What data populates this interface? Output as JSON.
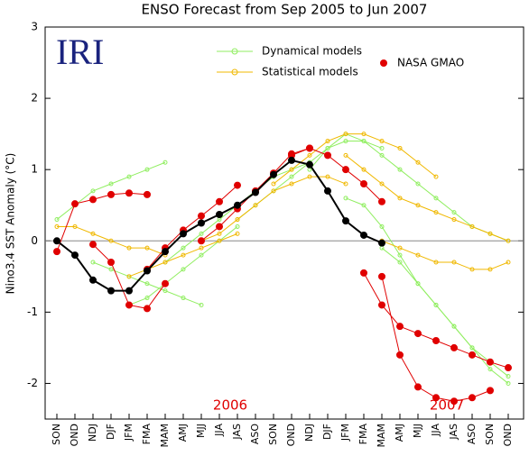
{
  "chart_data": {
    "type": "line",
    "title": "ENSO Forecast from Sep 2005 to Jun 2007",
    "brand": "IRI",
    "ylabel": "Nino3.4 SST Anomaly (°C)",
    "year_labels": [
      "2006",
      "2007"
    ],
    "categories": [
      "SON",
      "OND",
      "NDJ",
      "DJF",
      "JFM",
      "FMA",
      "MAM",
      "AMJ",
      "MJJ",
      "JJA",
      "JAS",
      "ASO",
      "SON",
      "OND",
      "NDJ",
      "DJF",
      "JFM",
      "FMA",
      "MAM",
      "AMJ",
      "MJJ",
      "JJA",
      "JAS",
      "ASO",
      "SON",
      "OND"
    ],
    "ylim": [
      -2.5,
      3
    ],
    "yticks": [
      -2,
      -1,
      0,
      1,
      2,
      3
    ],
    "observed": {
      "color": "#000000",
      "values": [
        0,
        -0.2,
        -0.55,
        -0.7,
        -0.7,
        -0.42,
        -0.15,
        0.1,
        0.25,
        0.37,
        0.5,
        0.68,
        0.93,
        1.13,
        1.07,
        0.7,
        0.28,
        0.08,
        -0.03,
        null,
        null,
        null,
        null,
        null,
        null,
        null
      ]
    },
    "series": [
      {
        "name": "Dynamical models",
        "color": "#90ee60",
        "lines": [
          [
            0.3,
            0.5,
            0.7,
            0.8,
            0.9,
            1.0,
            1.1,
            null,
            null,
            null,
            null,
            null,
            null,
            null,
            null,
            null,
            null,
            null,
            null,
            null,
            null,
            null,
            null,
            null,
            null,
            null
          ],
          [
            null,
            null,
            -0.3,
            -0.4,
            -0.5,
            -0.6,
            -0.7,
            -0.8,
            -0.9,
            null,
            null,
            null,
            null,
            null,
            null,
            null,
            null,
            null,
            null,
            null,
            null,
            null,
            null,
            null,
            null,
            null
          ],
          [
            null,
            null,
            null,
            null,
            -0.9,
            -0.8,
            -0.6,
            -0.4,
            -0.2,
            0.0,
            0.2,
            null,
            null,
            null,
            null,
            null,
            null,
            null,
            null,
            null,
            null,
            null,
            null,
            null,
            null,
            null
          ],
          [
            null,
            null,
            null,
            null,
            null,
            null,
            -0.3,
            -0.1,
            0.1,
            0.3,
            0.5,
            0.7,
            0.9,
            1.0,
            1.1,
            null,
            null,
            null,
            null,
            null,
            null,
            null,
            null,
            null,
            null,
            null
          ],
          [
            null,
            null,
            null,
            null,
            null,
            null,
            null,
            null,
            null,
            null,
            0.3,
            0.5,
            0.7,
            0.9,
            1.1,
            1.3,
            1.4,
            1.4,
            1.3,
            null,
            null,
            null,
            null,
            null,
            null,
            null
          ],
          [
            null,
            null,
            null,
            null,
            null,
            null,
            null,
            null,
            null,
            null,
            null,
            null,
            null,
            null,
            1.0,
            1.3,
            1.5,
            1.4,
            1.2,
            1.0,
            0.8,
            0.6,
            0.4,
            0.2,
            0.1,
            0.0
          ],
          [
            null,
            null,
            null,
            null,
            null,
            null,
            null,
            null,
            null,
            null,
            null,
            null,
            null,
            null,
            null,
            null,
            0.6,
            0.5,
            0.2,
            -0.2,
            -0.6,
            -0.9,
            -1.2,
            -1.5,
            -1.7,
            -1.9
          ],
          [
            null,
            null,
            null,
            null,
            null,
            null,
            null,
            null,
            null,
            null,
            null,
            null,
            null,
            null,
            null,
            null,
            null,
            null,
            -0.1,
            -0.3,
            -0.6,
            -0.9,
            -1.2,
            -1.5,
            -1.8,
            -2.0
          ]
        ]
      },
      {
        "name": "Statistical models",
        "color": "#f0b800",
        "lines": [
          [
            0.2,
            0.2,
            0.1,
            0.0,
            -0.1,
            -0.1,
            -0.2,
            null,
            null,
            null,
            null,
            null,
            null,
            null,
            null,
            null,
            null,
            null,
            null,
            null,
            null,
            null,
            null,
            null,
            null,
            null
          ],
          [
            null,
            null,
            null,
            null,
            -0.5,
            -0.4,
            -0.3,
            -0.2,
            -0.1,
            0.0,
            0.1,
            null,
            null,
            null,
            null,
            null,
            null,
            null,
            null,
            null,
            null,
            null,
            null,
            null,
            null,
            null
          ],
          [
            null,
            null,
            null,
            null,
            null,
            null,
            null,
            null,
            0.0,
            0.1,
            0.3,
            0.5,
            0.7,
            0.8,
            0.9,
            0.9,
            0.8,
            null,
            null,
            null,
            null,
            null,
            null,
            null,
            null,
            null
          ],
          [
            null,
            null,
            null,
            null,
            null,
            null,
            null,
            null,
            null,
            null,
            null,
            null,
            0.8,
            1.0,
            1.2,
            1.4,
            1.5,
            1.5,
            1.4,
            1.3,
            1.1,
            0.9,
            null,
            null,
            null,
            null
          ],
          [
            null,
            null,
            null,
            null,
            null,
            null,
            null,
            null,
            null,
            null,
            null,
            null,
            null,
            null,
            null,
            null,
            1.2,
            1.0,
            0.8,
            0.6,
            0.5,
            0.4,
            0.3,
            0.2,
            0.1,
            0.0
          ],
          [
            null,
            null,
            null,
            null,
            null,
            null,
            null,
            null,
            null,
            null,
            null,
            null,
            null,
            null,
            null,
            null,
            null,
            null,
            0.0,
            -0.1,
            -0.2,
            -0.3,
            -0.3,
            -0.4,
            -0.4,
            -0.3
          ]
        ]
      },
      {
        "name": "NASA GMAO",
        "color": "#e00000",
        "lines": [
          [
            -0.15,
            0.52,
            0.58,
            0.65,
            0.67,
            0.65,
            null,
            null,
            null,
            null,
            null,
            null,
            null,
            null,
            null,
            null,
            null,
            null,
            null,
            null,
            null,
            null,
            null,
            null,
            null,
            null
          ],
          [
            null,
            null,
            -0.05,
            -0.3,
            -0.9,
            -0.95,
            -0.6,
            null,
            null,
            null,
            null,
            null,
            null,
            null,
            null,
            null,
            null,
            null,
            null,
            null,
            null,
            null,
            null,
            null,
            null,
            null
          ],
          [
            null,
            null,
            null,
            null,
            null,
            -0.4,
            -0.1,
            0.15,
            0.35,
            0.55,
            0.78,
            null,
            null,
            null,
            null,
            null,
            null,
            null,
            null,
            null,
            null,
            null,
            null,
            null,
            null,
            null
          ],
          [
            null,
            null,
            null,
            null,
            null,
            null,
            null,
            null,
            0.0,
            0.2,
            0.45,
            0.7,
            0.95,
            1.22,
            1.3,
            null,
            null,
            null,
            null,
            null,
            null,
            null,
            null,
            null,
            null,
            null
          ],
          [
            null,
            null,
            null,
            null,
            null,
            null,
            null,
            null,
            null,
            null,
            null,
            null,
            null,
            1.2,
            1.3,
            1.2,
            1.0,
            0.8,
            0.55,
            null,
            null,
            null,
            null,
            null,
            null,
            null
          ],
          [
            null,
            null,
            null,
            null,
            null,
            null,
            null,
            null,
            null,
            null,
            null,
            null,
            null,
            null,
            null,
            null,
            null,
            -0.45,
            -0.9,
            -1.2,
            -1.3,
            -1.4,
            -1.5,
            -1.6,
            -1.7,
            -1.78
          ],
          [
            null,
            null,
            null,
            null,
            null,
            null,
            null,
            null,
            null,
            null,
            null,
            null,
            null,
            null,
            null,
            null,
            null,
            null,
            -0.5,
            -1.6,
            -2.05,
            -2.2,
            -2.25,
            -2.2,
            -2.1,
            null
          ]
        ]
      }
    ]
  }
}
